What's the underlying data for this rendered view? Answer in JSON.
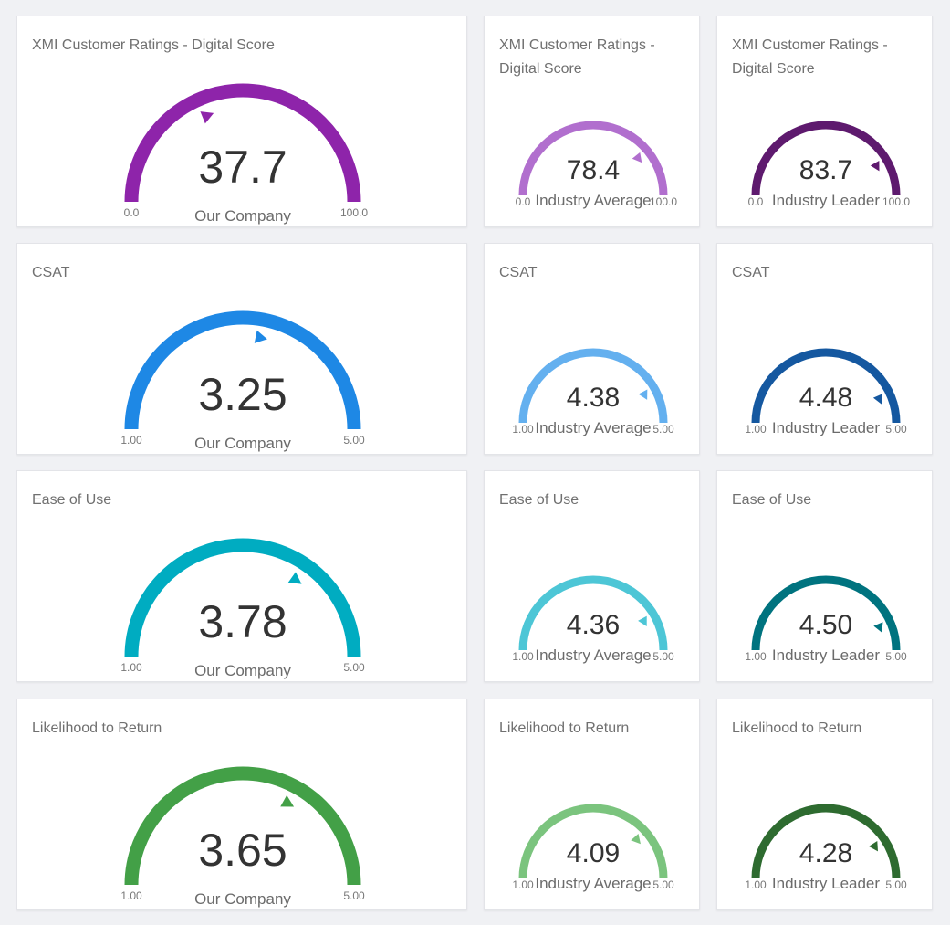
{
  "chart_data": [
    {
      "type": "gauge",
      "title": "XMI Customer Ratings - Digital Score",
      "value": 37.7,
      "value_label": "37.7",
      "subtitle": "Our Company",
      "min": 0.0,
      "max": 100.0,
      "min_label": "0.0",
      "max_label": "100.0",
      "color": "#8e24aa"
    },
    {
      "type": "gauge",
      "title": "XMI Customer Ratings - Digital Score",
      "value": 78.4,
      "value_label": "78.4",
      "subtitle": "Industry Average",
      "min": 0.0,
      "max": 100.0,
      "min_label": "0.0",
      "max_label": "100.0",
      "color": "#b16fce"
    },
    {
      "type": "gauge",
      "title": "XMI Customer Ratings - Digital Score",
      "value": 83.7,
      "value_label": "83.7",
      "subtitle": "Industry Leader",
      "min": 0.0,
      "max": 100.0,
      "min_label": "0.0",
      "max_label": "100.0",
      "color": "#5e1a6e"
    },
    {
      "type": "gauge",
      "title": "CSAT",
      "value": 3.25,
      "value_label": "3.25",
      "subtitle": "Our Company",
      "min": 1.0,
      "max": 5.0,
      "min_label": "1.00",
      "max_label": "5.00",
      "color": "#1e88e5"
    },
    {
      "type": "gauge",
      "title": "CSAT",
      "value": 4.38,
      "value_label": "4.38",
      "subtitle": "Industry Average",
      "min": 1.0,
      "max": 5.0,
      "min_label": "1.00",
      "max_label": "5.00",
      "color": "#64b0ef"
    },
    {
      "type": "gauge",
      "title": "CSAT",
      "value": 4.48,
      "value_label": "4.48",
      "subtitle": "Industry Leader",
      "min": 1.0,
      "max": 5.0,
      "min_label": "1.00",
      "max_label": "5.00",
      "color": "#1558a0"
    },
    {
      "type": "gauge",
      "title": "Ease of Use",
      "value": 3.78,
      "value_label": "3.78",
      "subtitle": "Our Company",
      "min": 1.0,
      "max": 5.0,
      "min_label": "1.00",
      "max_label": "5.00",
      "color": "#00acc1"
    },
    {
      "type": "gauge",
      "title": "Ease of Use",
      "value": 4.36,
      "value_label": "4.36",
      "subtitle": "Industry Average",
      "min": 1.0,
      "max": 5.0,
      "min_label": "1.00",
      "max_label": "5.00",
      "color": "#4dc6d6"
    },
    {
      "type": "gauge",
      "title": "Ease of Use",
      "value": 4.5,
      "value_label": "4.50",
      "subtitle": "Industry Leader",
      "min": 1.0,
      "max": 5.0,
      "min_label": "1.00",
      "max_label": "5.00",
      "color": "#00737f"
    },
    {
      "type": "gauge",
      "title": "Likelihood to Return",
      "value": 3.65,
      "value_label": "3.65",
      "subtitle": "Our Company",
      "min": 1.0,
      "max": 5.0,
      "min_label": "1.00",
      "max_label": "5.00",
      "color": "#43a047"
    },
    {
      "type": "gauge",
      "title": "Likelihood to Return",
      "value": 4.09,
      "value_label": "4.09",
      "subtitle": "Industry Average",
      "min": 1.0,
      "max": 5.0,
      "min_label": "1.00",
      "max_label": "5.00",
      "color": "#7bc47e"
    },
    {
      "type": "gauge",
      "title": "Likelihood to Return",
      "value": 4.28,
      "value_label": "4.28",
      "subtitle": "Industry Leader",
      "min": 1.0,
      "max": 5.0,
      "min_label": "1.00",
      "max_label": "5.00",
      "color": "#2e6b30"
    }
  ]
}
